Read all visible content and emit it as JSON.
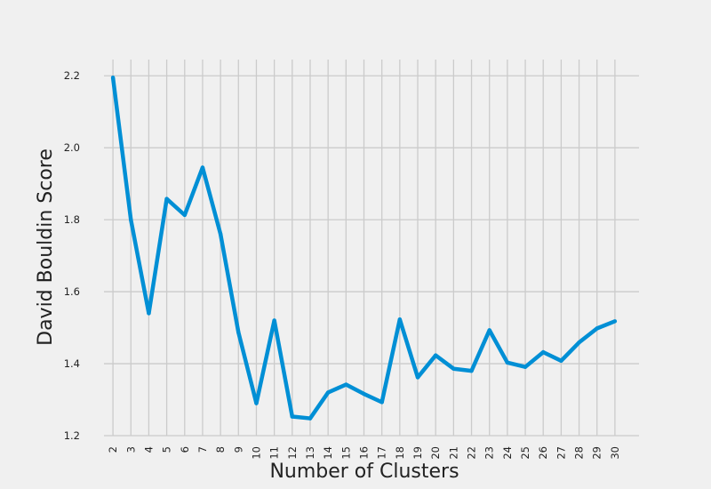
{
  "chart_data": {
    "type": "line",
    "title": "",
    "xlabel": "Number of Clusters",
    "ylabel": "David Bouldin Score",
    "x": [
      2,
      3,
      4,
      5,
      6,
      7,
      8,
      9,
      10,
      11,
      12,
      13,
      14,
      15,
      16,
      17,
      18,
      19,
      20,
      21,
      22,
      23,
      24,
      25,
      26,
      27,
      28,
      29,
      30
    ],
    "x_tick_labels": [
      "2",
      "3",
      "4",
      "5",
      "6",
      "7",
      "8",
      "9",
      "10",
      "11",
      "12",
      "13",
      "14",
      "15",
      "16",
      "17",
      "18",
      "19",
      "20",
      "21",
      "22",
      "23",
      "24",
      "25",
      "26",
      "27",
      "28",
      "29",
      "30"
    ],
    "series": [
      {
        "values": [
          2.195,
          1.8,
          1.54,
          1.858,
          1.813,
          1.945,
          1.76,
          1.487,
          1.29,
          1.52,
          1.253,
          1.248,
          1.32,
          1.342,
          1.316,
          1.293,
          1.523,
          1.362,
          1.423,
          1.386,
          1.38,
          1.493,
          1.403,
          1.391,
          1.432,
          1.408,
          1.459,
          1.498,
          1.518
        ],
        "color": "#008fd5"
      }
    ],
    "ylim": [
      1.2,
      2.245
    ],
    "y_ticks": [
      1.2,
      1.4,
      1.6,
      1.8,
      2.0,
      2.2
    ],
    "y_tick_labels": [
      "1.2",
      "1.4",
      "1.6",
      "1.8",
      "2.0",
      "2.2"
    ],
    "grid": true,
    "background_color": "#f0f0f0",
    "grid_color": "#cbcbcb"
  }
}
